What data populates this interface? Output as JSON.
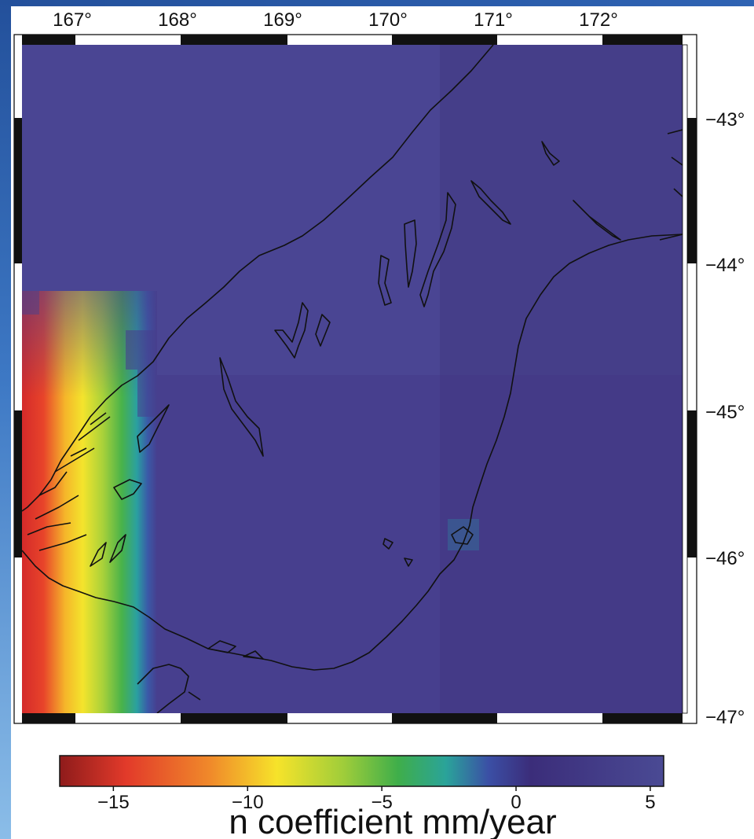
{
  "map": {
    "lon_ticks": [
      "167°",
      "168°",
      "169°",
      "170°",
      "171°",
      "172°"
    ],
    "lat_ticks": [
      "−43°",
      "−44°",
      "−45°",
      "−46°",
      "−47°"
    ],
    "lon_range": [
      166.5,
      172.7
    ],
    "lat_range": [
      -42.45,
      -47.0
    ],
    "field": {
      "background_value": 5,
      "gradient_region_lon": [
        166.5,
        168.2
      ],
      "gradient_region_lat": [
        -44.2,
        -47.0
      ],
      "min_value": -17
    }
  },
  "colorbar": {
    "ticks": [
      "−15",
      "−10",
      "−5",
      "0",
      "5"
    ],
    "tick_values": [
      -15,
      -10,
      -5,
      0,
      5
    ],
    "range": [
      -17,
      5.5
    ],
    "label": "n coefficient mm/year",
    "colors": [
      "#8e1b1b",
      "#e23a2a",
      "#f08a2a",
      "#f6e32a",
      "#9fcd3a",
      "#3fae4a",
      "#2aa39a",
      "#3b4fa5",
      "#3b2d7a",
      "#4a4a94"
    ]
  }
}
